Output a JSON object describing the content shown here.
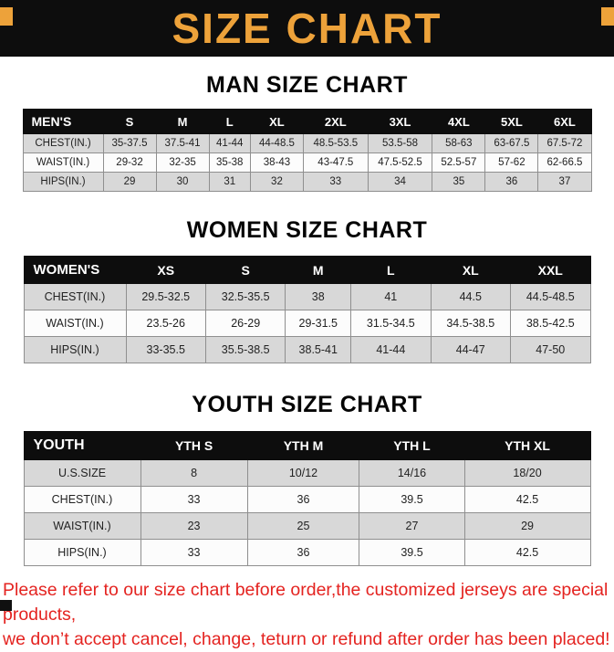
{
  "colors": {
    "accent-orange": "#EDA23A",
    "banner-black": "#0D0D0D",
    "note-red": "#E42320",
    "band-gray": "#D8D8D8"
  },
  "banner": {
    "title": "SIZE CHART"
  },
  "sections": {
    "men": {
      "heading": "MAN SIZE CHART",
      "table": {
        "header": [
          "MEN'S",
          "S",
          "M",
          "L",
          "XL",
          "2XL",
          "3XL",
          "4XL",
          "5XL",
          "6XL"
        ],
        "rows": [
          {
            "label": "CHEST(IN.)",
            "values": [
              "35-37.5",
              "37.5-41",
              "41-44",
              "44-48.5",
              "48.5-53.5",
              "53.5-58",
              "58-63",
              "63-67.5",
              "67.5-72"
            ]
          },
          {
            "label": "WAIST(IN.)",
            "values": [
              "29-32",
              "32-35",
              "35-38",
              "38-43",
              "43-47.5",
              "47.5-52.5",
              "52.5-57",
              "57-62",
              "62-66.5"
            ]
          },
          {
            "label": "HIPS(IN.)",
            "values": [
              "29",
              "30",
              "31",
              "32",
              "33",
              "34",
              "35",
              "36",
              "37"
            ]
          }
        ]
      }
    },
    "women": {
      "heading": "WOMEN SIZE CHART",
      "table": {
        "header": [
          "WOMEN'S",
          "XS",
          "S",
          "M",
          "L",
          "XL",
          "XXL"
        ],
        "rows": [
          {
            "label": "CHEST(IN.)",
            "values": [
              "29.5-32.5",
              "32.5-35.5",
              "38",
              "41",
              "44.5",
              "44.5-48.5"
            ]
          },
          {
            "label": "WAIST(IN.)",
            "values": [
              "23.5-26",
              "26-29",
              "29-31.5",
              "31.5-34.5",
              "34.5-38.5",
              "38.5-42.5"
            ]
          },
          {
            "label": "HIPS(IN.)",
            "values": [
              "33-35.5",
              "35.5-38.5",
              "38.5-41",
              "41-44",
              "44-47",
              "47-50"
            ]
          }
        ]
      }
    },
    "youth": {
      "heading": "YOUTH SIZE CHART",
      "table": {
        "header": [
          "YOUTH",
          "YTH S",
          "YTH M",
          "YTH L",
          "YTH XL"
        ],
        "rows": [
          {
            "label": "U.S.SIZE",
            "values": [
              "8",
              "10/12",
              "14/16",
              "18/20"
            ]
          },
          {
            "label": "CHEST(IN.)",
            "values": [
              "33",
              "36",
              "39.5",
              "42.5"
            ]
          },
          {
            "label": "WAIST(IN.)",
            "values": [
              "23",
              "25",
              "27",
              "29"
            ]
          },
          {
            "label": "HIPS(IN.)",
            "values": [
              "33",
              "36",
              "39.5",
              "42.5"
            ]
          }
        ]
      }
    }
  },
  "footer": {
    "line1": "Please refer to our size chart before order,the customized jerseys are special products,",
    "line2": "we don’t accept cancel, change, teturn or refund after order has been placed!"
  }
}
